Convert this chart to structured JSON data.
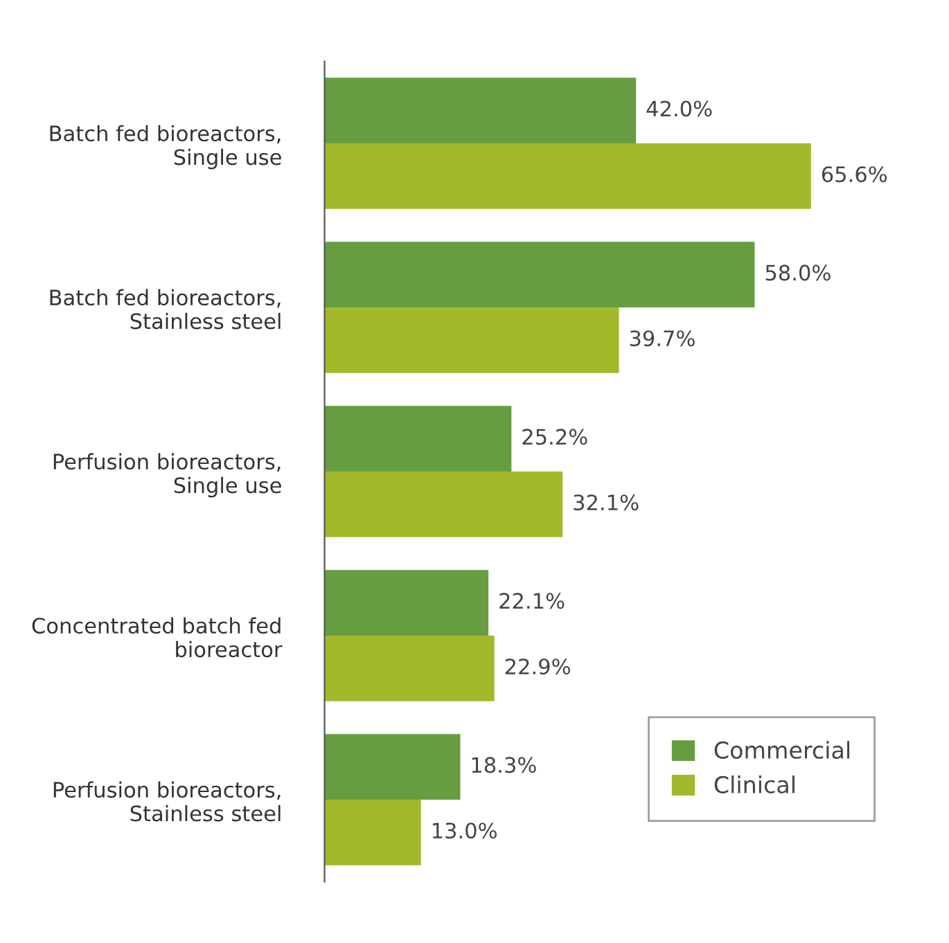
{
  "chart_data": {
    "type": "bar",
    "orientation": "horizontal",
    "categories": [
      "Batch fed bioreactors,\nSingle use",
      "Batch fed bioreactors,\nStainless steel",
      "Perfusion bioreactors,\nSingle use",
      "Concentrated batch fed\nbioreactor",
      "Perfusion bioreactors,\nStainless steel"
    ],
    "series": [
      {
        "name": "Commercial",
        "color": "#669d41",
        "values": [
          42.0,
          58.0,
          25.2,
          22.1,
          18.3
        ],
        "value_labels": [
          "42.0%",
          "58.0%",
          "25.2%",
          "22.1%",
          "18.3%"
        ]
      },
      {
        "name": "Clinical",
        "color": "#a3b82b",
        "values": [
          65.6,
          39.7,
          32.1,
          22.9,
          13.0
        ],
        "value_labels": [
          "65.6%",
          "39.7%",
          "32.1%",
          "22.9%",
          "13.0%"
        ]
      }
    ],
    "legend": "bottom right"
  }
}
